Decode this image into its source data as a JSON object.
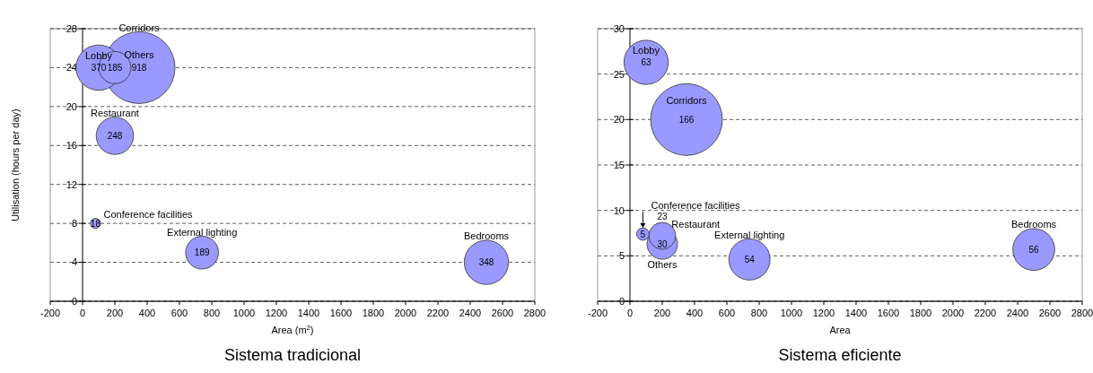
{
  "chart_data": [
    {
      "type": "bubble",
      "title": "Sistema tradicional",
      "xlabel": "Area (m$^{2}$)",
      "ylabel": "Utilisation (hours per day)",
      "xlim": [
        -200,
        2800
      ],
      "xticks": [
        -200,
        0,
        200,
        400,
        600,
        800,
        1000,
        1200,
        1400,
        1600,
        1800,
        2000,
        2200,
        2400,
        2600,
        2800
      ],
      "ylim": [
        0,
        28
      ],
      "yticks": [
        0,
        4,
        8,
        12,
        16,
        20,
        24,
        28
      ],
      "grid": "y",
      "series": [
        {
          "name": "Lobby",
          "color": "#9999ff",
          "x": [
            100
          ],
          "values": [
            24
          ],
          "sizes": [
            0.4
          ]
        },
        {
          "name": "Others",
          "color": "#9999ff",
          "x": [
            200
          ],
          "values": [
            24
          ],
          "sizes": [
            0.2
          ]
        },
        {
          "name": "Corridors",
          "color": "#9999ff",
          "x": [
            350
          ],
          "values": [
            24
          ],
          "sizes": [
            1
          ]
        },
        {
          "name": "Restaurant",
          "color": "#9999ff",
          "x": [
            200
          ],
          "values": [
            17
          ],
          "sizes": [
            0.27
          ]
        },
        {
          "name": "Conference facilities",
          "color": "#9999ff",
          "x": [
            80
          ],
          "values": [
            8
          ],
          "sizes": [
            0.02
          ]
        },
        {
          "name": "External lighting",
          "color": "#9999ff",
          "x": [
            740
          ],
          "values": [
            5
          ],
          "sizes": [
            0.21
          ]
        },
        {
          "name": "Bedrooms",
          "color": "#9999ff",
          "x": [
            2500
          ],
          "values": [
            4
          ],
          "sizes": [
            0.38
          ]
        }
      ],
      "annotations": [
        {
          "text": "370",
          "x": 100,
          "y": 24
        },
        {
          "text": "185",
          "x": 200,
          "y": 24
        },
        {
          "text": "918",
          "x": 350,
          "y": 24
        },
        {
          "text": "248",
          "x": 200,
          "y": 17
        },
        {
          "text": "18",
          "x": 80,
          "y": 8
        },
        {
          "text": "189",
          "x": 740,
          "y": 5
        },
        {
          "text": "348",
          "x": 2500,
          "y": 4
        }
      ]
    },
    {
      "type": "bubble",
      "title": "Sistema eficiente",
      "xlabel": "Area",
      "xlim": [
        -200,
        2800
      ],
      "xticks": [
        -200,
        0,
        200,
        400,
        600,
        800,
        1000,
        1200,
        1400,
        1600,
        1800,
        2000,
        2200,
        2400,
        2600,
        2800
      ],
      "ylim": [
        0,
        30
      ],
      "yticks": [
        0,
        5,
        10,
        15,
        20,
        25,
        30
      ],
      "grid": "y",
      "series": [
        {
          "name": "Lobby",
          "color": "#9999ff",
          "x": [
            100
          ],
          "values": [
            26.3
          ],
          "sizes": [
            0.38
          ]
        },
        {
          "name": "Corridors",
          "color": "#9999ff",
          "x": [
            350
          ],
          "values": [
            20
          ],
          "sizes": [
            1
          ]
        },
        {
          "name": "Conference facilities",
          "color": "#9999ff",
          "x": [
            80
          ],
          "values": [
            7.4
          ],
          "sizes": [
            0.03
          ]
        },
        {
          "name": "Restaurant",
          "color": "#9999ff",
          "x": [
            200
          ],
          "values": [
            7.2
          ],
          "sizes": [
            0.14
          ]
        },
        {
          "name": "Others",
          "color": "#9999ff",
          "x": [
            200
          ],
          "values": [
            6.3
          ],
          "sizes": [
            0.18
          ]
        },
        {
          "name": "External lighting",
          "color": "#9999ff",
          "x": [
            740
          ],
          "values": [
            4.6
          ],
          "sizes": [
            0.33
          ]
        },
        {
          "name": "Bedrooms",
          "color": "#9999ff",
          "x": [
            2500
          ],
          "values": [
            5.7
          ],
          "sizes": [
            0.34
          ]
        }
      ],
      "annotations": [
        {
          "text": "63",
          "x": 100,
          "y": 26.3
        },
        {
          "text": "166",
          "x": 350,
          "y": 20
        },
        {
          "text": "5",
          "x": 80,
          "y": 7.4
        },
        {
          "text": "23",
          "x": 200,
          "y": 7.2
        },
        {
          "text": "30",
          "x": 200,
          "y": 6.3
        },
        {
          "text": "54",
          "x": 740,
          "y": 4.6
        },
        {
          "text": "56",
          "x": 2500,
          "y": 5.7
        }
      ]
    }
  ]
}
